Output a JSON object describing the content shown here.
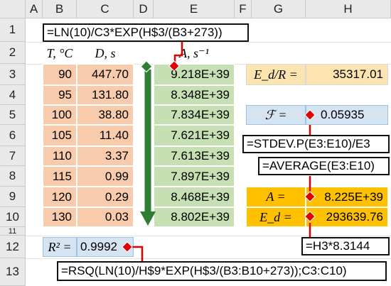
{
  "columns": [
    "A",
    "B",
    "C",
    "D",
    "E",
    "F",
    "G",
    "H"
  ],
  "rows": [
    "1",
    "2",
    "3",
    "4",
    "5",
    "6",
    "7",
    "8",
    "9",
    "10",
    "11",
    "12",
    "13"
  ],
  "headers": {
    "T": "T, °C",
    "D": "D, s",
    "A": "A, s⁻¹"
  },
  "T": [
    "90",
    "95",
    "100",
    "105",
    "110",
    "115",
    "120",
    "130"
  ],
  "D": [
    "447.70",
    "131.80",
    "38.80",
    "11.40",
    "3.37",
    "0.99",
    "0.29",
    "0.03"
  ],
  "A": [
    "9.218E+39",
    "8.348E+39",
    "7.834E+39",
    "7.621E+39",
    "7.613E+39",
    "7.897E+39",
    "8.468E+39",
    "8.802E+39"
  ],
  "Ed_over_R": {
    "label": "E_d/R =",
    "value": "35317.01"
  },
  "F": {
    "label": "ℱ =",
    "value": "0.05935"
  },
  "A_avg": {
    "label": "A =",
    "value": "8.225E+39"
  },
  "Ed": {
    "label": "E_d =",
    "value": "293639.76"
  },
  "R2": {
    "label": "R² =",
    "value": "0.9992"
  },
  "formulas": {
    "e3": "=LN(10)/C3*EXP(H$3/(B3+273))",
    "stdev": "=STDEV.P(E3:E10)/E3",
    "average": "=AVERAGE(E3:E10)",
    "ed": "=H3*8.3144",
    "rsq": "=RSQ(LN(10)/H$9*EXP(H$3/(B3:B10+273));C3:C10)"
  },
  "colors": {
    "pink": "#f8cbad",
    "green": "#c6e0b4",
    "tan": "#fce4b0",
    "blue": "#d6e4f2",
    "orange": "#ffc000",
    "arrow_red": "#e00000",
    "arrow_green": "#2e7d32"
  }
}
